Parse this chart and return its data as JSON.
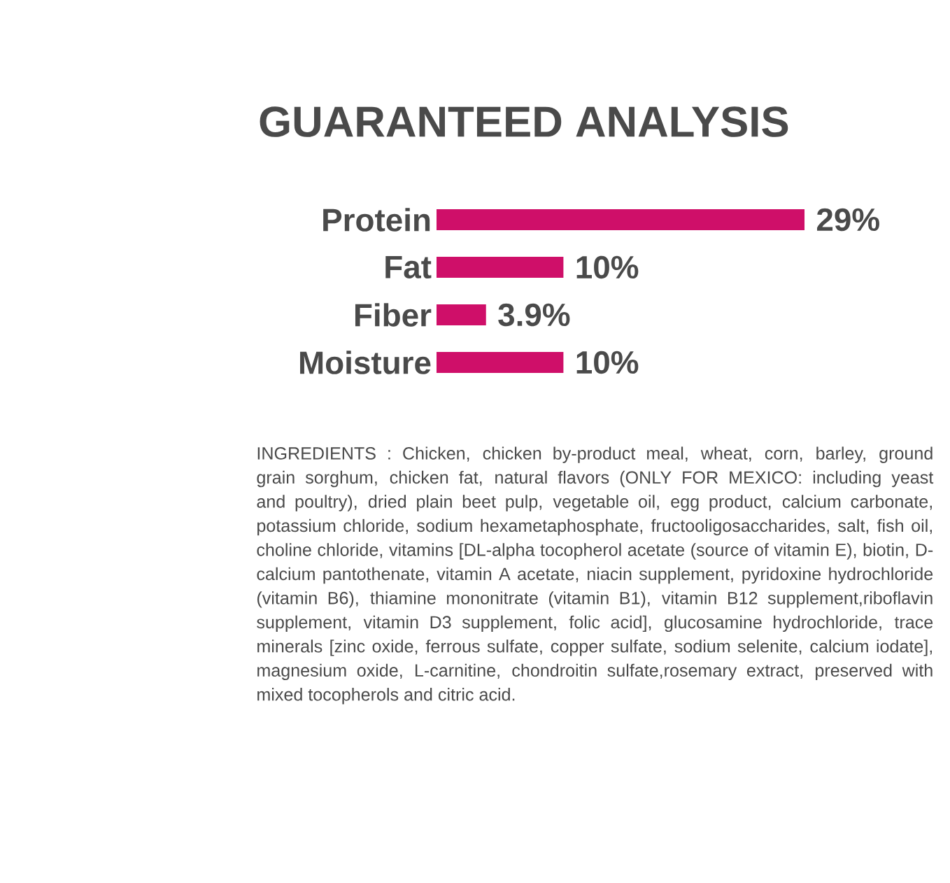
{
  "chart_data": {
    "type": "bar",
    "orientation": "horizontal",
    "title": "GUARANTEED ANALYSIS",
    "categories": [
      "Protein",
      "Fat",
      "Fiber",
      "Moisture"
    ],
    "values": [
      29,
      10,
      3.9,
      10
    ],
    "value_labels": [
      "29%",
      "10%",
      "3.9%",
      "10%"
    ],
    "color": "#cf0f69",
    "annotations": [
      "INGREDIENTS : Chicken, chicken by-product meal, wheat, corn, barley, ground grain sorghum, chicken fat, natural flavors (ONLY FOR MEXICO: including yeast and poultry), dried plain beet pulp, vegetable oil, egg product, calcium carbonate, potassium chloride, sodium hexametaphosphate, fructooligosaccharides, salt, fish oil, choline chloride, vitamins [DL-alpha tocopherol acetate (source of vitamin E), biotin, D-calcium pantothenate, vitamin A acetate, niacin supplement, pyridoxine hydrochloride (vitamin B6), thiamine mononitrate (vitamin B1), vitamin B12 supplement,riboflavin supplement, vitamin D3 supplement, folic acid], glucosamine hydrochloride, trace minerals [zinc oxide, ferrous sulfate, copper sulfate, sodium selenite, calcium iodate], magnesium oxide, L-carnitine, chondroitin sulfate,rosemary extract, preserved with mixed tocopherols and citric acid."
    ]
  }
}
